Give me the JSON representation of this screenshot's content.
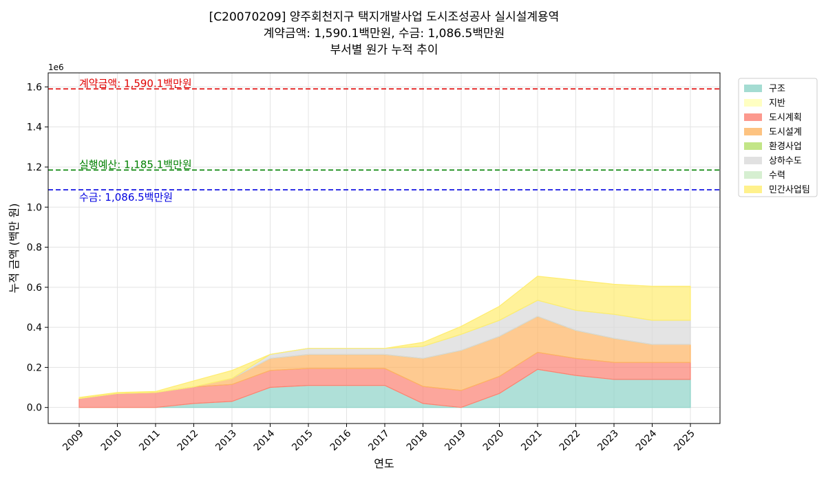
{
  "chart_data": {
    "type": "area",
    "title_lines": [
      "[C20070209] 양주회천지구 택지개발사업 도시조성공사 실시설계용역",
      "계약금액: 1,590.1백만원, 수금: 1,086.5백만원",
      "부서별 원가 누적 추이"
    ],
    "xlabel": "연도",
    "ylabel": "누적 금액 (백만 원)",
    "y_multiplier": "1e6",
    "x": [
      "2009",
      "2010",
      "2011",
      "2012",
      "2013",
      "2014",
      "2015",
      "2016",
      "2017",
      "2018",
      "2019",
      "2020",
      "2021",
      "2022",
      "2023",
      "2024",
      "2025"
    ],
    "yticks": [
      0.0,
      0.2,
      0.4,
      0.6,
      0.8,
      1.0,
      1.2,
      1.4,
      1.6
    ],
    "ytick_labels": [
      "0.0",
      "0.2",
      "0.4",
      "0.6",
      "0.8",
      "1.0",
      "1.2",
      "1.4",
      "1.6"
    ],
    "ylim": [
      -0.08,
      1.67
    ],
    "grid": true,
    "legend_position": "outside top-right",
    "series": [
      {
        "name": "구조",
        "color": "#8dd3c7",
        "values": [
          0,
          0,
          0,
          0.02,
          0.03,
          0.1,
          0.11,
          0.11,
          0.11,
          0.02,
          0.0,
          0.07,
          0.19,
          0.16,
          0.14,
          0.14,
          0.14
        ]
      },
      {
        "name": "지반",
        "color": "#ffffb3",
        "values": [
          0,
          0,
          0,
          0,
          0,
          0,
          0,
          0,
          0,
          0,
          0,
          0,
          0,
          0,
          0,
          0,
          0
        ]
      },
      {
        "name": "도시계획",
        "color": "#fb8072",
        "values": [
          0.045,
          0.07,
          0.075,
          0.083,
          0.085,
          0.085,
          0.085,
          0.085,
          0.085,
          0.085,
          0.085,
          0.085,
          0.085,
          0.085,
          0.085,
          0.085,
          0.085
        ]
      },
      {
        "name": "도시설계",
        "color": "#fdb462",
        "values": [
          0.0,
          0.0,
          0.0,
          0.0,
          0.03,
          0.06,
          0.07,
          0.07,
          0.07,
          0.14,
          0.2,
          0.2,
          0.18,
          0.14,
          0.12,
          0.09,
          0.09
        ]
      },
      {
        "name": "환경사업",
        "color": "#b3de69",
        "values": [
          0,
          0,
          0,
          0,
          0,
          0,
          0,
          0,
          0,
          0,
          0,
          0,
          0,
          0,
          0,
          0,
          0
        ]
      },
      {
        "name": "상하수도",
        "color": "#d9d9d9",
        "values": [
          0.0,
          0.0,
          0.0,
          0.0,
          0.0,
          0.02,
          0.03,
          0.03,
          0.03,
          0.06,
          0.08,
          0.08,
          0.08,
          0.1,
          0.12,
          0.12,
          0.12
        ]
      },
      {
        "name": "수력",
        "color": "#ccebc5",
        "values": [
          0,
          0,
          0,
          0,
          0,
          0,
          0,
          0,
          0,
          0,
          0,
          0,
          0,
          0,
          0,
          0,
          0
        ]
      },
      {
        "name": "민간사업팀",
        "color": "#ffed6f",
        "values": [
          0.005,
          0.005,
          0.005,
          0.03,
          0.04,
          0.0,
          0.0,
          0.0,
          0.0,
          0.02,
          0.04,
          0.07,
          0.12,
          0.15,
          0.15,
          0.17,
          0.17
        ]
      }
    ],
    "annotations": [
      {
        "label": "계약금액: 1,590.1백만원",
        "value": 1.5901,
        "color": "#e00000",
        "line": "dashed",
        "label_side": "above"
      },
      {
        "label": "실행예산: 1,185.1백만원",
        "value": 1.1851,
        "color": "#008000",
        "line": "dashed",
        "label_side": "above"
      },
      {
        "label": "수금: 1,086.5백만원",
        "value": 1.0865,
        "color": "#0000e0",
        "line": "dashed",
        "label_side": "below"
      }
    ]
  }
}
